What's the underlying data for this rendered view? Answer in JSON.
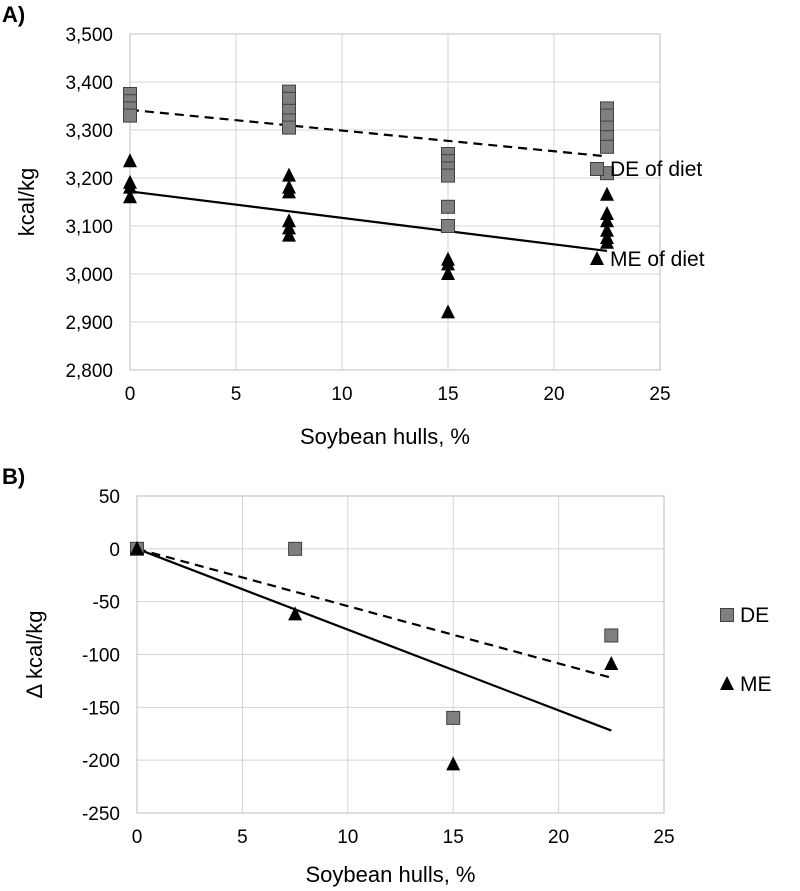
{
  "chart_data": [
    {
      "type": "scatter",
      "panel_label": "A)",
      "xlabel": "Soybean hulls, %",
      "ylabel": "kcal/kg",
      "xlim": [
        0,
        25
      ],
      "ylim": [
        2800,
        3500
      ],
      "xticks": [
        0,
        5,
        10,
        15,
        20,
        25
      ],
      "yticks": [
        2800,
        2900,
        3000,
        3100,
        3200,
        3300,
        3400,
        3500
      ],
      "ytick_labels": [
        "2,800",
        "2,900",
        "3,000",
        "3,100",
        "3,200",
        "3,300",
        "3,400",
        "3,500"
      ],
      "grid": true,
      "legend_position": "right",
      "series": [
        {
          "name": "DE of diet",
          "marker": "square",
          "color": "#7f7f7f",
          "points": [
            [
              0,
              3375
            ],
            [
              0,
              3360
            ],
            [
              0,
              3345
            ],
            [
              0,
              3330
            ],
            [
              7.5,
              3380
            ],
            [
              7.5,
              3365
            ],
            [
              7.5,
              3340
            ],
            [
              7.5,
              3320
            ],
            [
              7.5,
              3305
            ],
            [
              15,
              3250
            ],
            [
              15,
              3235
            ],
            [
              15,
              3220
            ],
            [
              15,
              3205
            ],
            [
              15,
              3140
            ],
            [
              15,
              3100
            ],
            [
              22.5,
              3345
            ],
            [
              22.5,
              3330
            ],
            [
              22.5,
              3305
            ],
            [
              22.5,
              3285
            ],
            [
              22.5,
              3265
            ],
            [
              22.5,
              3210
            ]
          ],
          "trend": {
            "style": "dashed",
            "from": [
              0,
              3342
            ],
            "to": [
              22.5,
              3245
            ]
          }
        },
        {
          "name": "ME of diet",
          "marker": "triangle",
          "color": "#000000",
          "points": [
            [
              0,
              3235
            ],
            [
              0,
              3190
            ],
            [
              0,
              3180
            ],
            [
              0,
              3160
            ],
            [
              7.5,
              3205
            ],
            [
              7.5,
              3180
            ],
            [
              7.5,
              3170
            ],
            [
              7.5,
              3110
            ],
            [
              7.5,
              3095
            ],
            [
              7.5,
              3080
            ],
            [
              15,
              3030
            ],
            [
              15,
              3020
            ],
            [
              15,
              3000
            ],
            [
              15,
              2920
            ],
            [
              22.5,
              3165
            ],
            [
              22.5,
              3125
            ],
            [
              22.5,
              3110
            ],
            [
              22.5,
              3090
            ],
            [
              22.5,
              3075
            ],
            [
              22.5,
              3065
            ]
          ],
          "trend": {
            "style": "solid",
            "from": [
              0,
              3172
            ],
            "to": [
              22.5,
              3048
            ]
          }
        }
      ]
    },
    {
      "type": "scatter",
      "panel_label": "B)",
      "xlabel": "Soybean hulls, %",
      "ylabel": "Δ kcal/kg",
      "xlim": [
        0,
        25
      ],
      "ylim": [
        -250,
        50
      ],
      "xticks": [
        0,
        5,
        10,
        15,
        20,
        25
      ],
      "yticks": [
        -250,
        -200,
        -150,
        -100,
        -50,
        0,
        50
      ],
      "ytick_labels": [
        "-250",
        "-200",
        "-150",
        "-100",
        "-50",
        "0",
        "50"
      ],
      "grid": true,
      "legend_position": "right",
      "series": [
        {
          "name": "DE",
          "marker": "square",
          "color": "#7f7f7f",
          "points": [
            [
              0,
              0
            ],
            [
              7.5,
              0
            ],
            [
              15,
              -160
            ],
            [
              22.5,
              -82
            ]
          ],
          "trend": {
            "style": "dashed",
            "from": [
              0,
              0
            ],
            "to": [
              22.5,
              -122
            ]
          }
        },
        {
          "name": "ME",
          "marker": "triangle",
          "color": "#000000",
          "points": [
            [
              0,
              0
            ],
            [
              7.5,
              -62
            ],
            [
              15,
              -204
            ],
            [
              22.5,
              -109
            ]
          ],
          "trend": {
            "style": "solid",
            "from": [
              0,
              0
            ],
            "to": [
              22.5,
              -172
            ]
          }
        }
      ]
    }
  ]
}
